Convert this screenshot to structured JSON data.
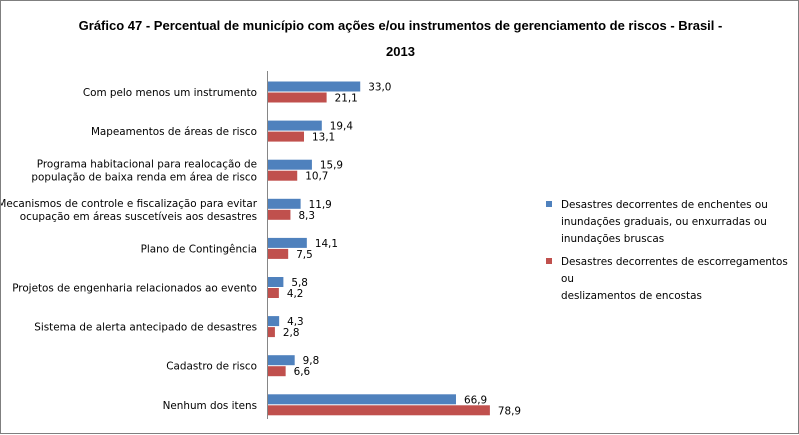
{
  "chart_data": {
    "type": "bar",
    "orientation": "horizontal",
    "title": "Gráfico 47 - Percentual de município com ações e/ou instrumentos de gerenciamento de riscos - Brasil - 2013",
    "title_lines": [
      "Gráfico 47 - Percentual de município com ações e/ou instrumentos de gerenciamento de riscos - Brasil -",
      "2013"
    ],
    "categories": [
      [
        "Com pelo menos um instrumento"
      ],
      [
        "Mapeamentos de áreas de risco"
      ],
      [
        "Programa habitacional para realocação de",
        "população de baixa renda em área de risco"
      ],
      [
        "Mecanismos de controle e fiscalização para evitar",
        "ocupação em áreas suscetíveis aos desastres"
      ],
      [
        "Plano de Contingência"
      ],
      [
        "Projetos de engenharia relacionados ao evento"
      ],
      [
        "Sistema de alerta antecipado de desastres"
      ],
      [
        "Cadastro de risco"
      ],
      [
        "Nenhum dos itens"
      ]
    ],
    "series": [
      {
        "name": "Desastres decorrentes de enchentes ou inundações graduais, ou enxurradas ou inundações bruscas",
        "name_lines": [
          "Desastres decorrentes de enchentes ou",
          "inundações graduais, ou enxurradas ou",
          "inundações bruscas"
        ],
        "color": "#4f81bd",
        "values": [
          33.0,
          19.4,
          15.9,
          11.9,
          14.1,
          5.8,
          4.3,
          9.8,
          66.9
        ],
        "labels": [
          "33,0",
          "19,4",
          "15,9",
          "11,9",
          "14,1",
          "5,8",
          "4,3",
          "9,8",
          "66,9"
        ]
      },
      {
        "name": "Desastres decorrentes de escorregamentos ou deslizamentos de encostas",
        "name_lines": [
          "Desastres decorrentes de escorregamentos ou",
          "deslizamentos de encostas"
        ],
        "color": "#c0504d",
        "values": [
          21.1,
          13.1,
          10.7,
          8.3,
          7.5,
          4.2,
          2.8,
          6.6,
          78.9
        ],
        "labels": [
          "21,1",
          "13,1",
          "10,7",
          "8,3",
          "7,5",
          "4,2",
          "2,8",
          "6,6",
          "78,9"
        ]
      }
    ],
    "xlim": [
      0,
      80
    ],
    "grid": false,
    "legend_position": "right"
  }
}
